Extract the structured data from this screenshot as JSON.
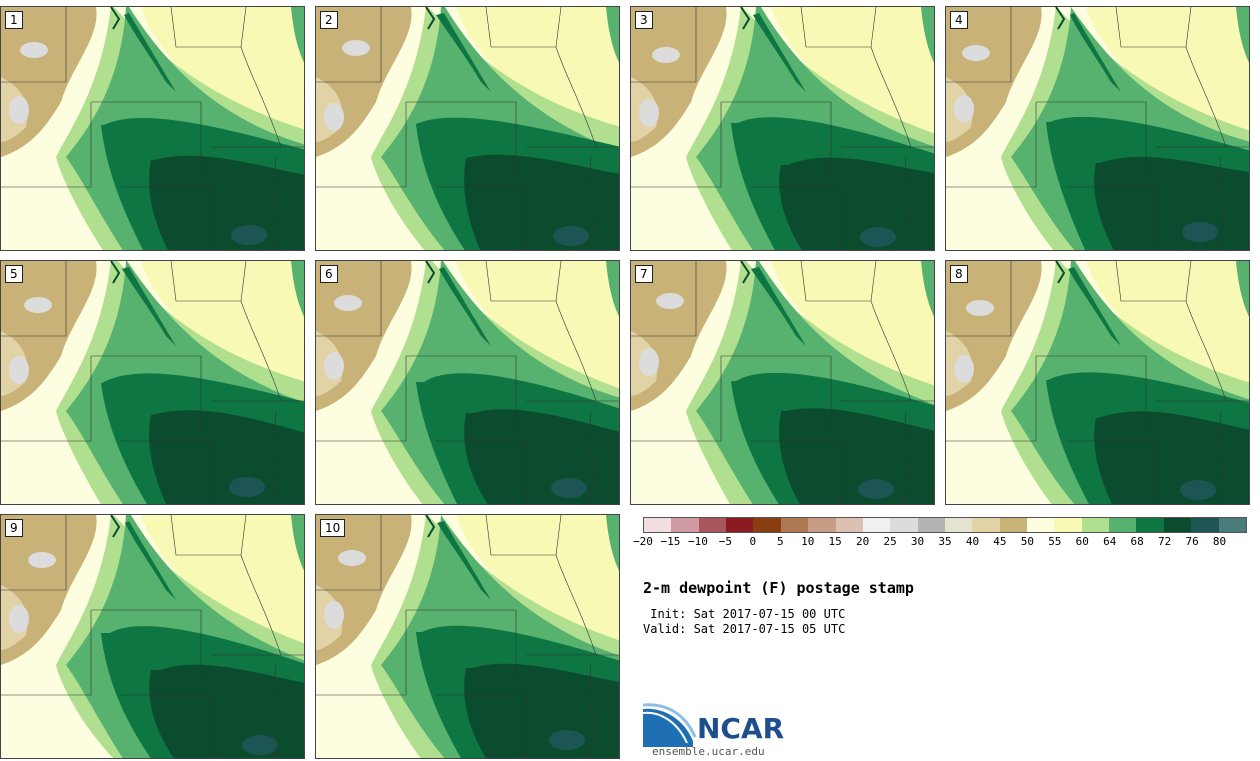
{
  "panels": [
    {
      "label": "1"
    },
    {
      "label": "2"
    },
    {
      "label": "3"
    },
    {
      "label": "4"
    },
    {
      "label": "5"
    },
    {
      "label": "6"
    },
    {
      "label": "7"
    },
    {
      "label": "8"
    },
    {
      "label": "9"
    },
    {
      "label": "10"
    }
  ],
  "legend": {
    "colors": [
      "#f0dee1",
      "#d09aa2",
      "#a9555e",
      "#8b1a22",
      "#8a3f13",
      "#ad7852",
      "#c79d83",
      "#dcc0b1",
      "#f0f0f0",
      "#dcdcdc",
      "#b4b4b4",
      "#e3e3d2",
      "#e2d3a6",
      "#c8b277",
      "#fdfde0",
      "#f7f9b5",
      "#b0e08f",
      "#56b26e",
      "#0e7643",
      "#0b4b2e",
      "#1d5555",
      "#4b7c7c"
    ],
    "labels": [
      "−20",
      "−15",
      "−10",
      "−5",
      "0",
      "5",
      "10",
      "15",
      "20",
      "25",
      "30",
      "35",
      "40",
      "45",
      "50",
      "55",
      "60",
      "64",
      "68",
      "72",
      "76",
      "80"
    ]
  },
  "title": "2-m dewpoint (F) postage stamp",
  "init": " Init: Sat 2017-07-15 00 UTC",
  "valid": "Valid: Sat 2017-07-15 05 UTC",
  "logo": {
    "text": "NCAR",
    "site": "ensemble.ucar.edu"
  }
}
